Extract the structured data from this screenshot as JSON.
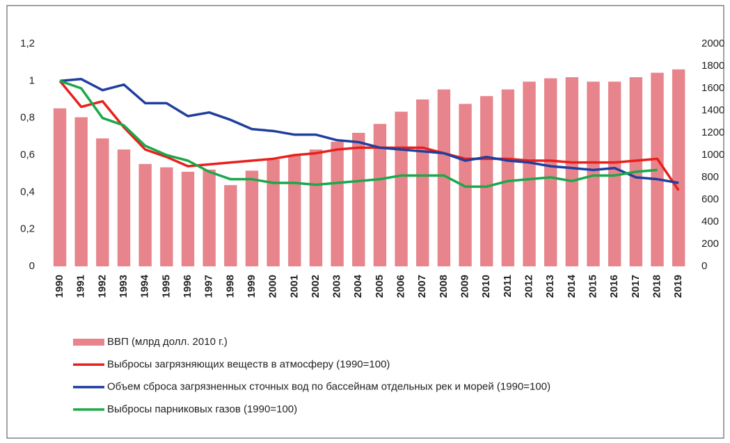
{
  "chart_data": {
    "type": "bar",
    "categories": [
      "1990",
      "1991",
      "1992",
      "1993",
      "1994",
      "1995",
      "1996",
      "1997",
      "1998",
      "1999",
      "2000",
      "2001",
      "2002",
      "2003",
      "2004",
      "2005",
      "2006",
      "2007",
      "2008",
      "2009",
      "2010",
      "2011",
      "2012",
      "2013",
      "2014",
      "2015",
      "2016",
      "2017",
      "2018",
      "2019"
    ],
    "series": [
      {
        "name": "ВВП (млрд долл. 2010 г.)",
        "type": "bar",
        "axis": "y2",
        "color": "#e8848c",
        "values": [
          1420,
          1340,
          1150,
          1050,
          920,
          890,
          850,
          870,
          730,
          860,
          960,
          1000,
          1050,
          1120,
          1200,
          1280,
          1390,
          1500,
          1590,
          1460,
          1530,
          1590,
          1660,
          1690,
          1700,
          1660,
          1660,
          1700,
          1740,
          1770
        ]
      },
      {
        "name": "Выбросы загрязняющих веществ в атмосферу (1990=100)",
        "type": "line",
        "color": "#e8201c",
        "values": [
          1.0,
          0.86,
          0.89,
          0.75,
          0.63,
          0.59,
          0.54,
          0.55,
          0.56,
          0.57,
          0.58,
          0.6,
          0.61,
          0.63,
          0.64,
          0.64,
          0.64,
          0.64,
          0.61,
          0.58,
          0.58,
          0.58,
          0.57,
          0.57,
          0.56,
          0.56,
          0.56,
          0.57,
          0.58,
          0.41
        ]
      },
      {
        "name": "Объем сброса загрязненных сточных вод по бассейнам отдельных рек и морей (1990=100)",
        "type": "line",
        "color": "#1f3f9e",
        "values": [
          1.0,
          1.01,
          0.95,
          0.98,
          0.88,
          0.88,
          0.81,
          0.83,
          0.79,
          0.74,
          0.73,
          0.71,
          0.71,
          0.68,
          0.67,
          0.64,
          0.63,
          0.62,
          0.61,
          0.57,
          0.59,
          0.57,
          0.56,
          0.54,
          0.53,
          0.52,
          0.53,
          0.48,
          0.47,
          0.45
        ]
      },
      {
        "name": "Выбросы парниковых газов (1990=100)",
        "type": "line",
        "color": "#1aa84a",
        "values": [
          1.0,
          0.96,
          0.8,
          0.76,
          0.65,
          0.6,
          0.57,
          0.51,
          0.47,
          0.47,
          0.45,
          0.45,
          0.44,
          0.45,
          0.46,
          0.47,
          0.49,
          0.49,
          0.49,
          0.43,
          0.43,
          0.46,
          0.47,
          0.48,
          0.46,
          0.49,
          0.49,
          0.51,
          0.52,
          null
        ]
      }
    ],
    "ylim": [
      0,
      1.2
    ],
    "yticks": [
      0,
      {
        "value": 0.2,
        "label": "0,2"
      },
      {
        "value": 0.4,
        "label": "0,4"
      },
      {
        "value": 0.6,
        "label": "0,6"
      },
      {
        "value": 0.8,
        "label": "0,8"
      },
      1,
      {
        "value": 1.2,
        "label": "1,2"
      }
    ],
    "y2lim": [
      0,
      2000
    ],
    "y2ticks": [
      0,
      200,
      400,
      600,
      800,
      1000,
      1200,
      1400,
      1600,
      1800,
      2000
    ],
    "legend": "bottom"
  }
}
